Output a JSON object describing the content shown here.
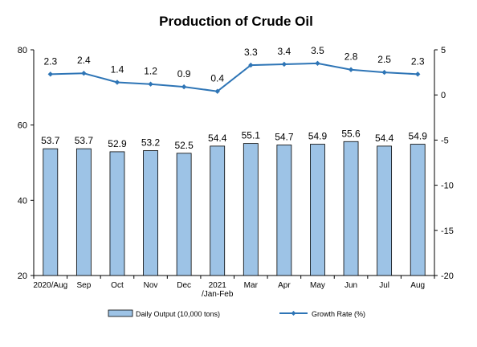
{
  "chart_data": {
    "type": "bar",
    "title": "Production of Crude Oil",
    "categories": [
      "2020/Aug",
      "Sep",
      "Oct",
      "Nov",
      "Dec",
      "2021\n/Jan-Feb",
      "Mar",
      "Apr",
      "May",
      "Jun",
      "Jul",
      "Aug"
    ],
    "series": [
      {
        "name": "Daily Output (10,000 tons)",
        "type": "bar",
        "axis": "left",
        "color": "#9DC3E6",
        "values": [
          53.7,
          53.7,
          52.9,
          53.2,
          52.5,
          54.4,
          55.1,
          54.7,
          54.9,
          55.6,
          54.4,
          54.9
        ]
      },
      {
        "name": "Growth Rate (%)",
        "type": "line",
        "axis": "right",
        "color": "#2E75B6",
        "values": [
          2.3,
          2.4,
          1.4,
          1.2,
          0.9,
          0.4,
          3.3,
          3.4,
          3.5,
          2.8,
          2.5,
          2.3
        ]
      }
    ],
    "y_left": {
      "ylim": [
        20,
        80
      ],
      "ticks": [
        20,
        40,
        60,
        80
      ]
    },
    "y_right": {
      "ylim": [
        -20,
        5
      ],
      "ticks": [
        5,
        0,
        -5,
        -10,
        -15,
        -20
      ]
    },
    "grid": false,
    "legend_position": "bottom"
  }
}
